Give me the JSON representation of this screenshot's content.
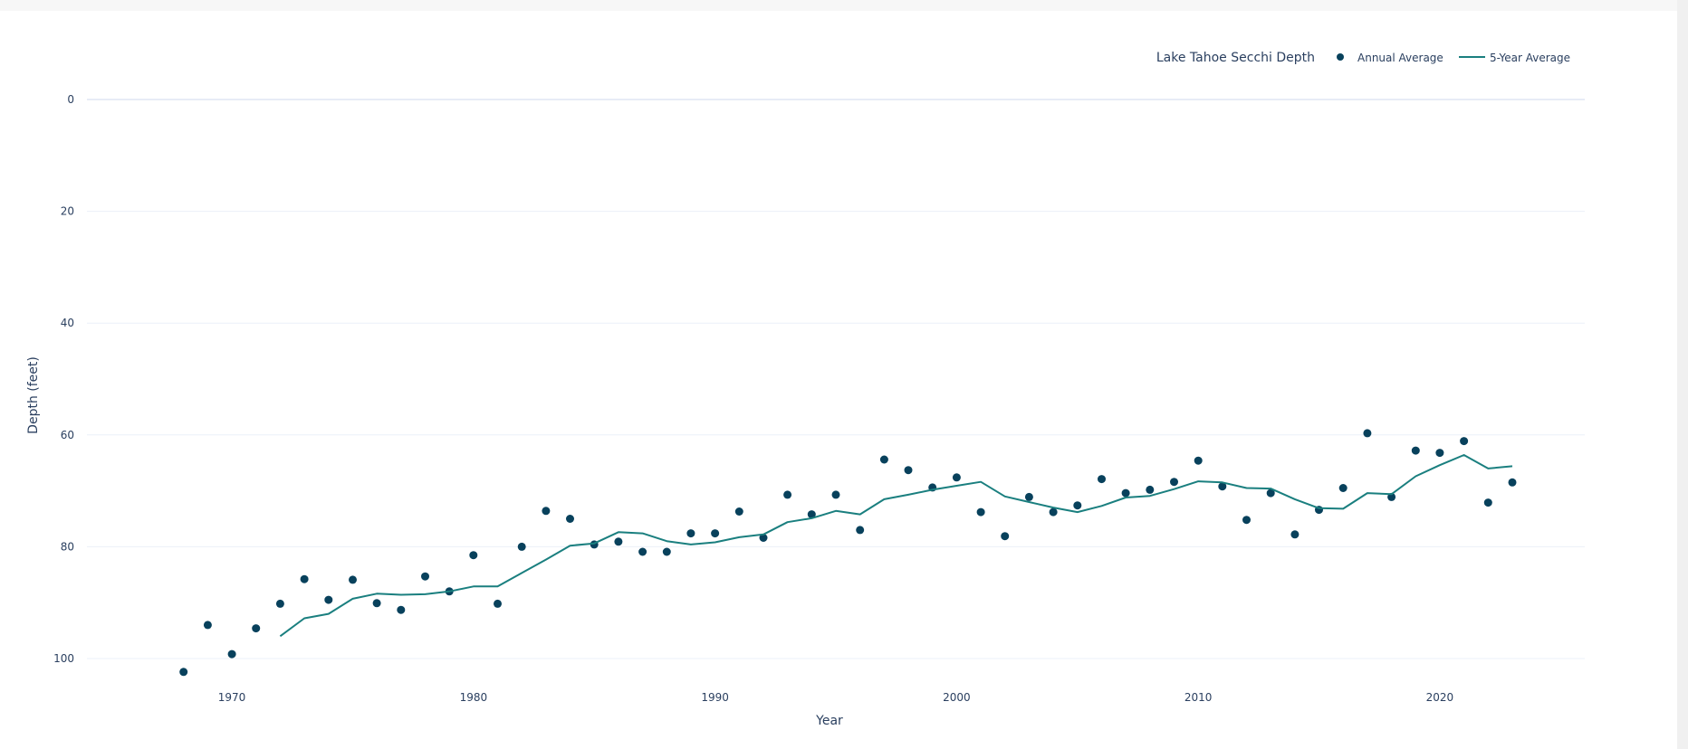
{
  "chart_data": {
    "type": "scatter",
    "xlabel": "Year",
    "ylabel": "Depth (feet)",
    "xlim": [
      1964,
      2026
    ],
    "ylim": [
      0,
      104
    ],
    "y_reversed": true,
    "grid": true,
    "x_ticks": [
      1970,
      1980,
      1990,
      2000,
      2010,
      2020
    ],
    "y_ticks": [
      0,
      20,
      40,
      60,
      80,
      100
    ],
    "legend": {
      "title": "Lake Tahoe Secchi Depth",
      "placement": "top-right"
    },
    "series": [
      {
        "name": "Annual Average",
        "mode": "markers",
        "color": "#08415c",
        "x": [
          1968,
          1969,
          1970,
          1971,
          1972,
          1973,
          1974,
          1975,
          1976,
          1977,
          1978,
          1979,
          1980,
          1981,
          1982,
          1983,
          1984,
          1985,
          1986,
          1987,
          1988,
          1989,
          1990,
          1991,
          1992,
          1993,
          1994,
          1995,
          1996,
          1997,
          1998,
          1999,
          2000,
          2001,
          2002,
          2003,
          2004,
          2005,
          2006,
          2007,
          2008,
          2009,
          2010,
          2011,
          2012,
          2013,
          2014,
          2015,
          2016,
          2017,
          2018,
          2019,
          2020,
          2021,
          2022,
          2023
        ],
        "y": [
          102.4,
          94.0,
          99.2,
          94.6,
          90.2,
          85.8,
          89.5,
          85.9,
          90.1,
          91.3,
          85.3,
          88.0,
          81.5,
          90.2,
          80.0,
          73.6,
          75.0,
          79.6,
          79.1,
          80.9,
          80.9,
          77.6,
          77.6,
          73.7,
          78.4,
          70.7,
          74.2,
          70.7,
          77.0,
          64.4,
          66.3,
          69.4,
          67.6,
          73.8,
          78.1,
          71.1,
          73.8,
          72.6,
          67.9,
          70.4,
          69.8,
          68.4,
          64.6,
          69.2,
          75.2,
          70.4,
          77.8,
          73.4,
          69.5,
          59.7,
          71.1,
          62.8,
          63.2,
          61.1,
          72.1,
          68.5
        ]
      },
      {
        "name": "5-Year Average",
        "mode": "lines",
        "color": "#1a7f7f",
        "x": [
          1972,
          1973,
          1974,
          1975,
          1976,
          1977,
          1978,
          1979,
          1980,
          1981,
          1982,
          1983,
          1984,
          1985,
          1986,
          1987,
          1988,
          1989,
          1990,
          1991,
          1992,
          1993,
          1994,
          1995,
          1996,
          1997,
          1998,
          1999,
          2000,
          2001,
          2002,
          2003,
          2004,
          2005,
          2006,
          2007,
          2008,
          2009,
          2010,
          2011,
          2012,
          2013,
          2014,
          2015,
          2016,
          2017,
          2018,
          2019,
          2020,
          2021,
          2022,
          2023
        ],
        "y": [
          96.0,
          92.8,
          92.0,
          89.3,
          88.4,
          88.6,
          88.5,
          88.0,
          87.1,
          87.1,
          84.7,
          82.3,
          79.8,
          79.4,
          77.4,
          77.6,
          79.0,
          79.6,
          79.2,
          78.3,
          77.8,
          75.6,
          74.9,
          73.6,
          74.2,
          71.5,
          70.7,
          69.8,
          69.1,
          68.4,
          71.0,
          72.0,
          73.0,
          73.8,
          72.7,
          71.2,
          70.9,
          69.7,
          68.3,
          68.5,
          69.5,
          69.6,
          71.5,
          73.1,
          73.2,
          70.4,
          70.6,
          67.4,
          65.4,
          63.6,
          66.0,
          65.6
        ]
      }
    ]
  }
}
